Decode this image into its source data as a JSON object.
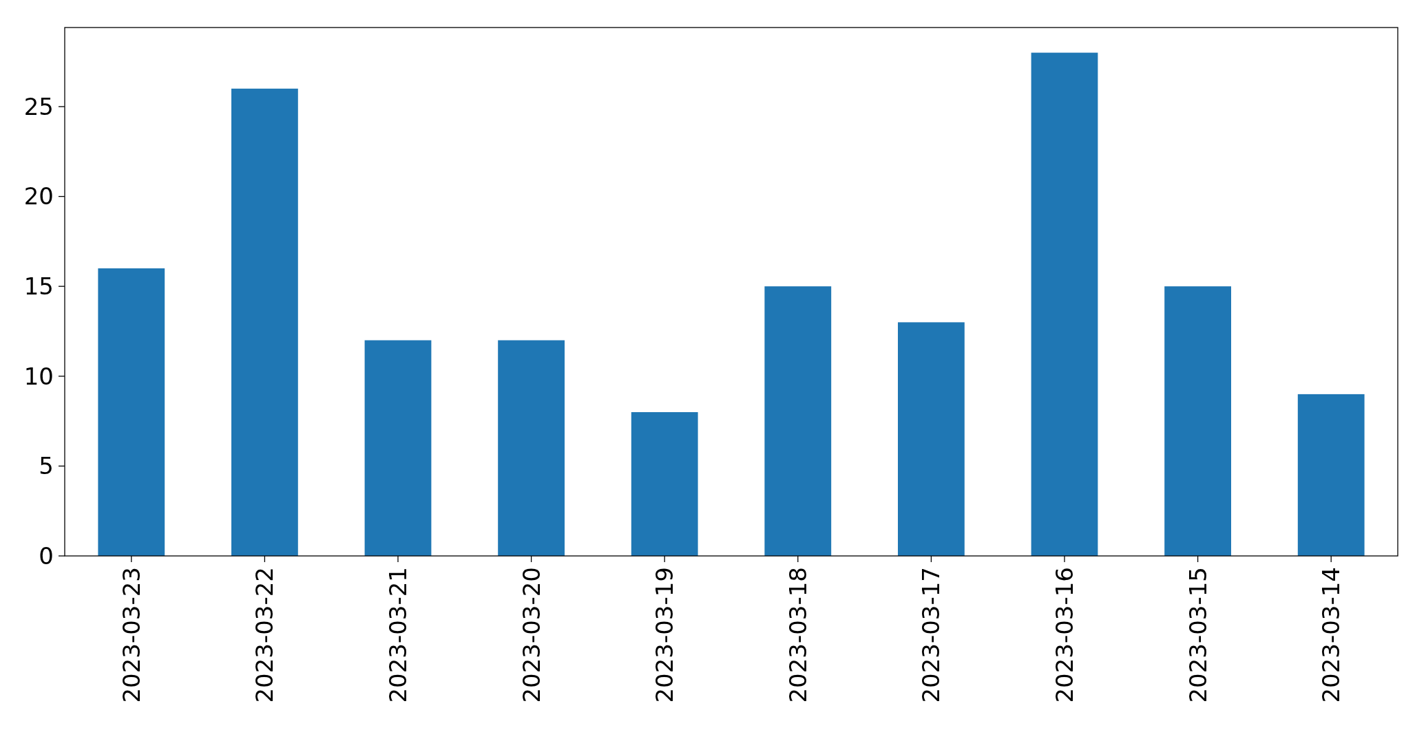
{
  "chart_data": {
    "type": "bar",
    "categories": [
      "2023-03-23",
      "2023-03-22",
      "2023-03-21",
      "2023-03-20",
      "2023-03-19",
      "2023-03-18",
      "2023-03-17",
      "2023-03-16",
      "2023-03-15",
      "2023-03-14"
    ],
    "values": [
      16,
      26,
      12,
      12,
      8,
      15,
      13,
      28,
      15,
      9
    ],
    "color": "#1f77b4",
    "ylim": [
      0,
      29.4
    ],
    "yticks": [
      0,
      5,
      10,
      15,
      20,
      25
    ],
    "grid": false
  }
}
